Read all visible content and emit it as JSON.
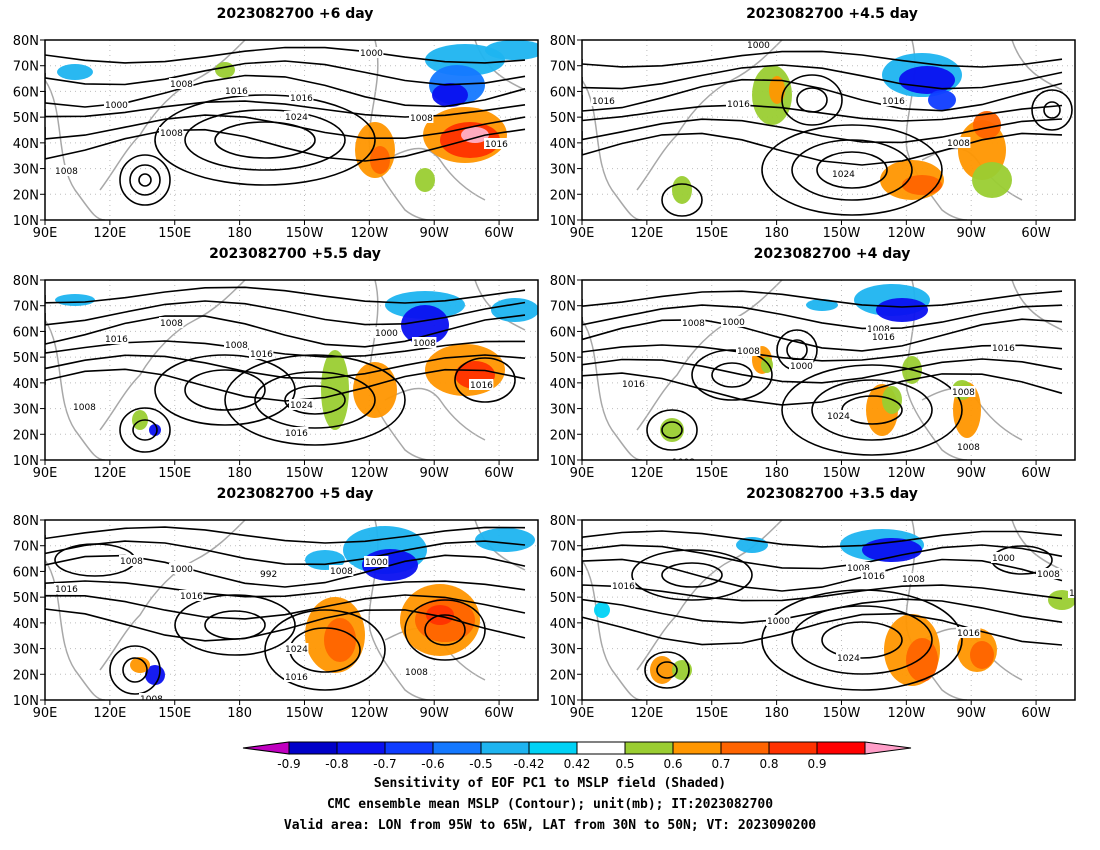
{
  "panels": [
    {
      "id": "p1",
      "title": "2023082700  +6 day"
    },
    {
      "id": "p2",
      "title": "2023082700  +4.5 day"
    },
    {
      "id": "p3",
      "title": "2023082700  +5.5 day"
    },
    {
      "id": "p4",
      "title": "2023082700  +4 day"
    },
    {
      "id": "p5",
      "title": "2023082700  +5 day"
    },
    {
      "id": "p6",
      "title": "2023082700  +3.5 day"
    }
  ],
  "axes": {
    "lat_labels": [
      "80N",
      "70N",
      "60N",
      "50N",
      "40N",
      "30N",
      "20N",
      "10N"
    ],
    "lon_labels": [
      "90E",
      "120E",
      "150E",
      "180",
      "150W",
      "120W",
      "90W",
      "60W"
    ]
  },
  "contour_labels": {
    "p1": [
      "1000",
      "1008",
      "1016",
      "1000",
      "1016",
      "1024",
      "1008",
      "1008",
      "1016",
      "1008"
    ],
    "p2": [
      "1000",
      "1016",
      "1016",
      "1016",
      "1008",
      "1024"
    ],
    "p3": [
      "1008",
      "1016",
      "1008",
      "1016",
      "1000",
      "1008",
      "1016",
      "1008",
      "1024",
      "1016"
    ],
    "p4": [
      "1008",
      "1000",
      "1008",
      "1016",
      "1008",
      "1016",
      "1000",
      "1016",
      "1024",
      "1008",
      "1008",
      "1008"
    ],
    "p5": [
      "1008",
      "1000",
      "992",
      "1008",
      "1000",
      "1016",
      "1016",
      "1024",
      "1016",
      "1008",
      "1008"
    ],
    "p6": [
      "1008",
      "1016",
      "1000",
      "1008",
      "1016",
      "1000",
      "1016",
      "1024",
      "1008",
      "10"
    ]
  },
  "colorbar": {
    "tick_labels": [
      "-0.9",
      "-0.8",
      "-0.7",
      "-0.6",
      "-0.5",
      "-0.42",
      "0.42",
      "0.5",
      "0.6",
      "0.7",
      "0.8",
      "0.9"
    ],
    "colors": [
      "#c000c0",
      "#0000c8",
      "#0a10f0",
      "#0f3cff",
      "#1478ff",
      "#1eb4f0",
      "#00d2f5",
      "#ffffff",
      "#9acd32",
      "#ff9600",
      "#ff6400",
      "#ff3200",
      "#ff0000",
      "#ff9ec8"
    ]
  },
  "caption": {
    "line1": "Sensitivity of EOF PC1 to MSLP field (Shaded)",
    "line2": "CMC ensemble mean MSLP (Contour); unit(mb); IT:2023082700",
    "line3": "Valid area: LON from 95W to 65W, LAT from 30N to 50N; VT: 2023090200"
  }
}
